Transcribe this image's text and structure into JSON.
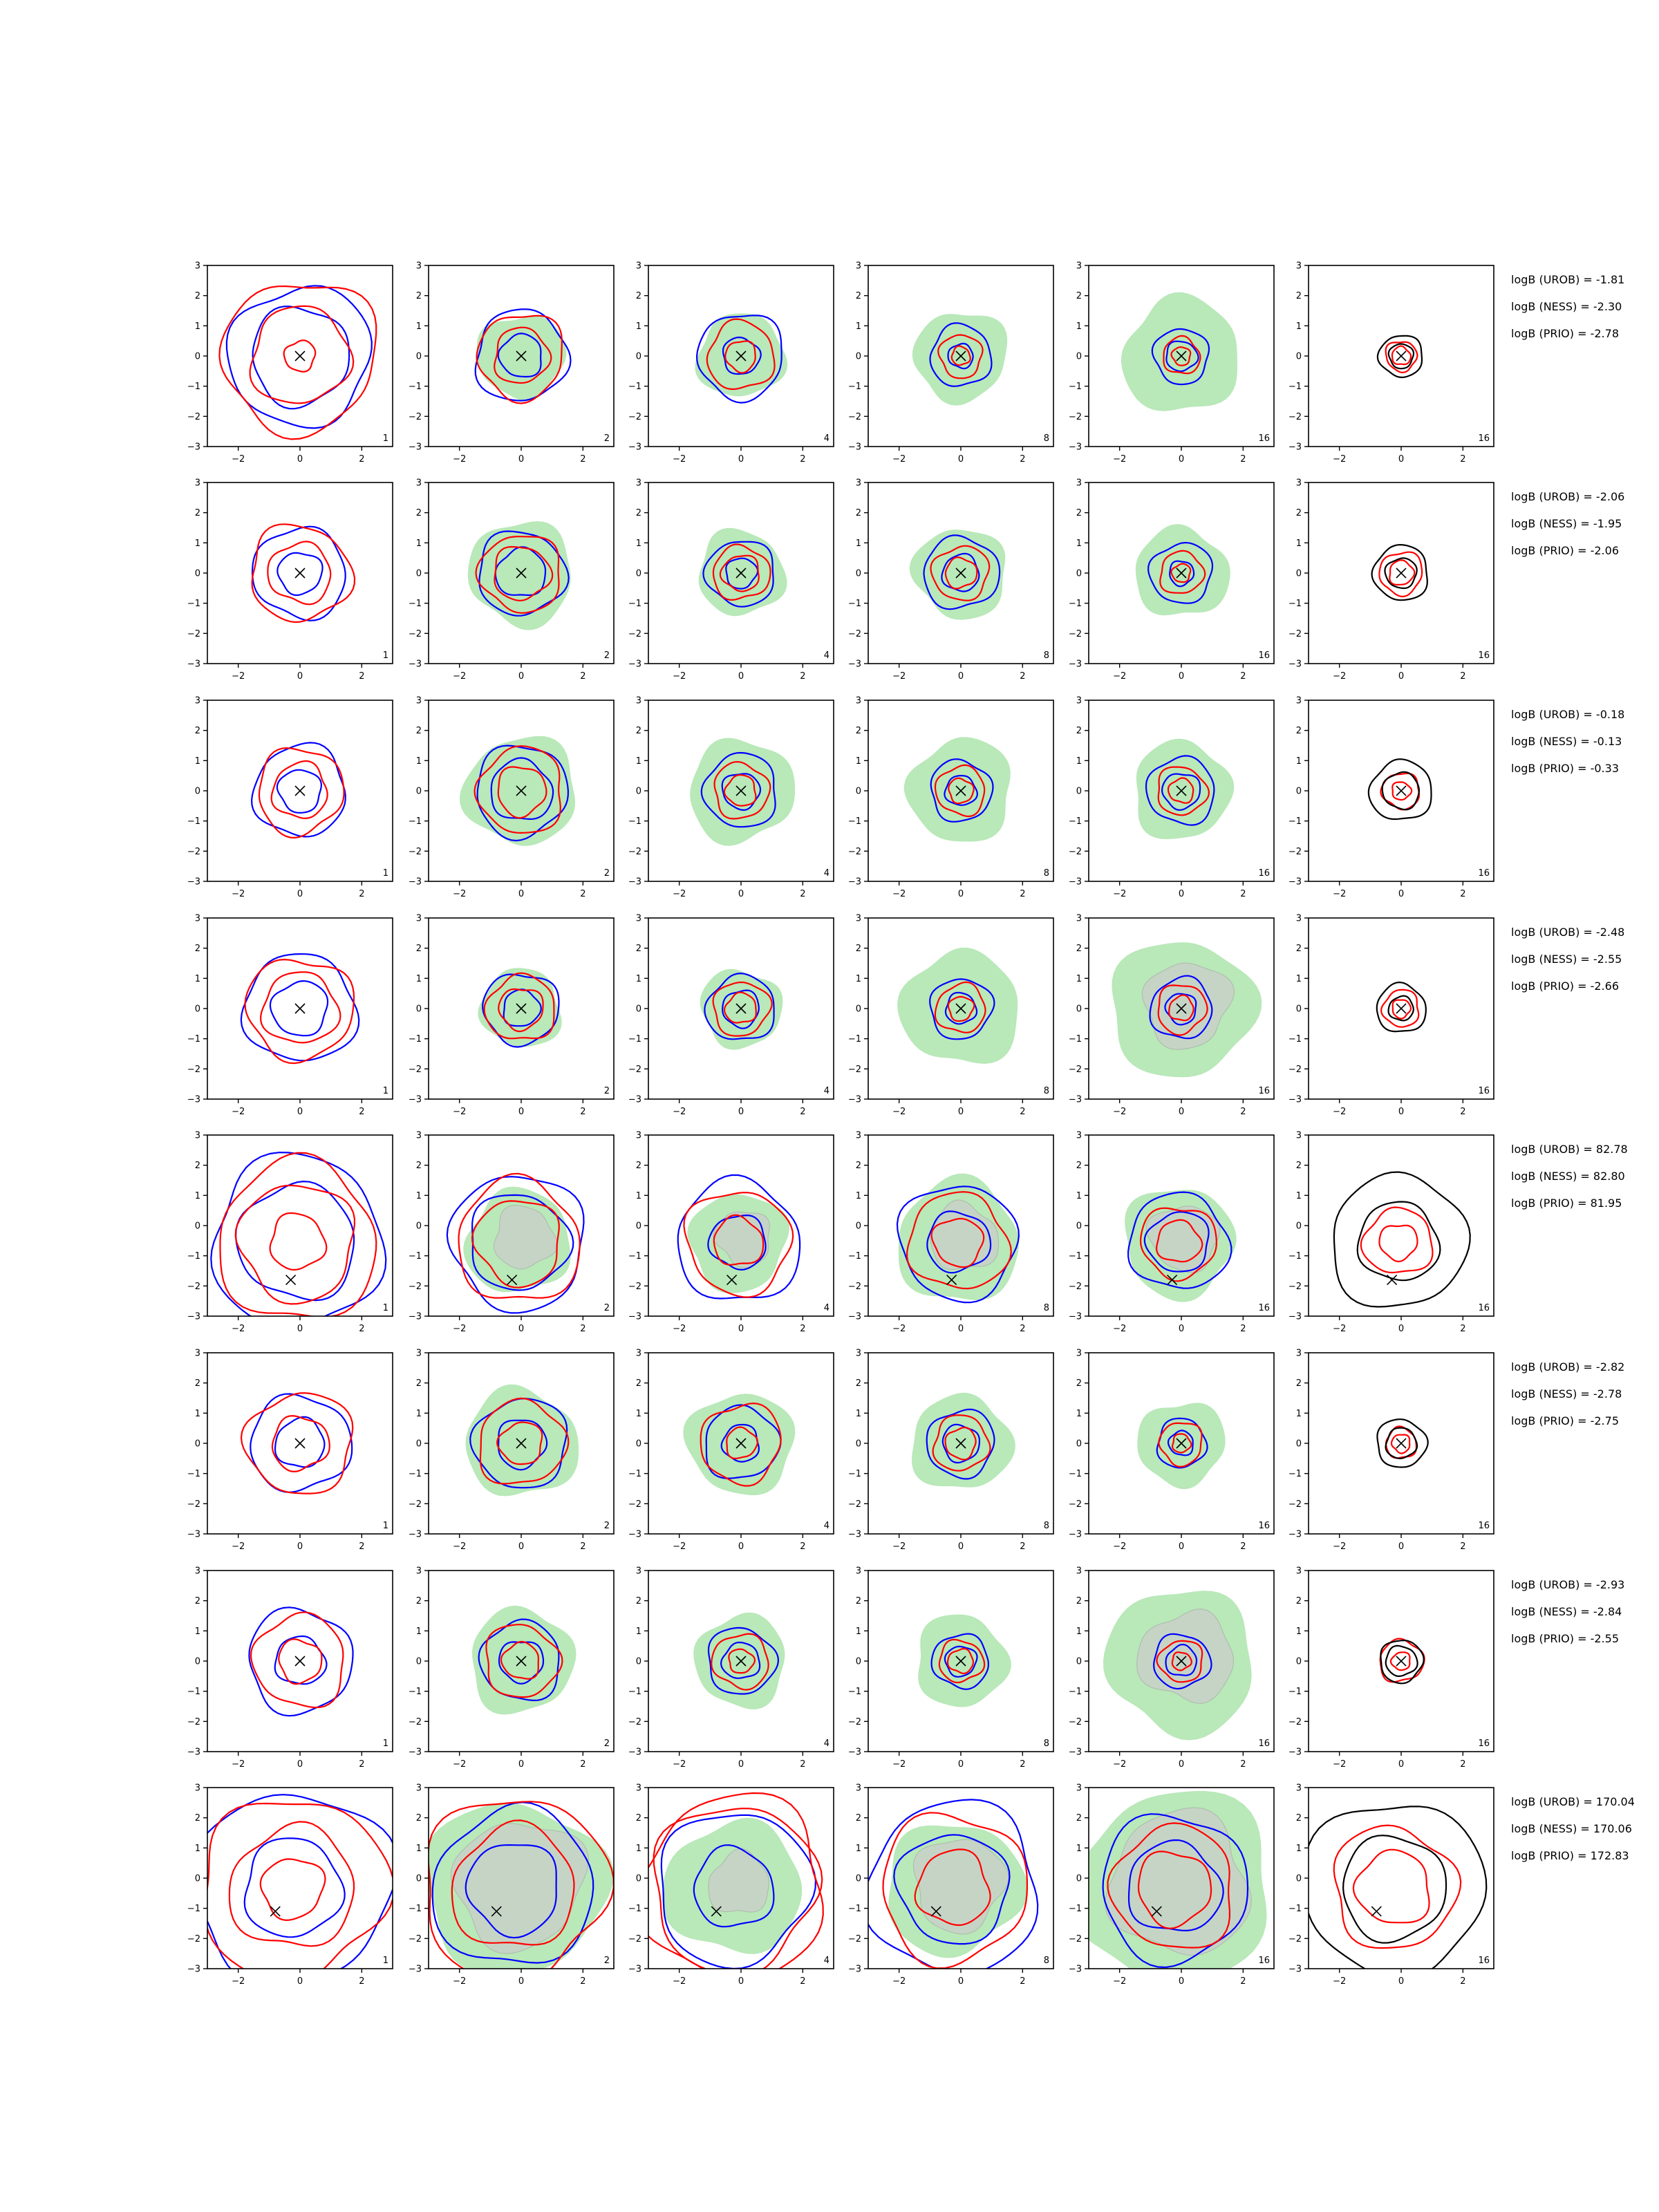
{
  "chart_data": {
    "type": "contour-grid",
    "description_units": "each panel: x in [-3,3], y in [-3,3]",
    "xlim": [
      -3,
      3
    ],
    "ylim": [
      -3,
      3
    ],
    "xticks": [
      "−2",
      "0",
      "2"
    ],
    "yticks": [
      "3",
      "2",
      "1",
      "0",
      "−1",
      "−2",
      "−3"
    ],
    "colors": {
      "blue": "#0000ff",
      "red": "#ff0000",
      "black": "#000000",
      "green_fill": "#b9e8b9",
      "gray_fill": "#c8d2c8"
    },
    "rows": [
      {
        "scores": [
          "logB (UROB) = -1.81",
          "logB (NESS) = -2.30",
          "logB (PRIO) = -2.78"
        ],
        "marker": [
          0,
          0
        ],
        "panels": [
          {
            "label": "1",
            "green": 0,
            "gray": 0,
            "blue": [
              1.6,
              2.3
            ],
            "red": [
              0.5,
              1.6,
              2.5
            ],
            "black": []
          },
          {
            "label": "2",
            "green": 1.4,
            "gray": 0,
            "blue": [
              0.7,
              1.5
            ],
            "red": [
              0.9,
              1.4
            ],
            "black": []
          },
          {
            "label": "4",
            "green": 1.4,
            "gray": 0,
            "blue": [
              0.6,
              1.4
            ],
            "red": [
              0.5,
              1.1
            ],
            "black": []
          },
          {
            "label": "8",
            "green": 1.5,
            "gray": 0,
            "blue": [
              0.4,
              1.0
            ],
            "red": [
              0.3,
              0.7
            ],
            "black": []
          },
          {
            "label": "16",
            "green": 1.9,
            "gray": 0,
            "blue": [
              0.5,
              0.9
            ],
            "red": [
              0.3,
              0.6
            ],
            "black": []
          },
          {
            "label": "16",
            "green": 0,
            "gray": 0,
            "blue": [],
            "red": [
              0.3,
              0.5
            ],
            "black": [
              0.4,
              0.7
            ]
          }
        ]
      },
      {
        "scores": [
          "logB (UROB) = -2.06",
          "logB (NESS) = -1.95",
          "logB (PRIO) = -2.06"
        ],
        "marker": [
          0,
          0
        ],
        "panels": [
          {
            "label": "1",
            "green": 0,
            "gray": 0,
            "blue": [
              0.7,
              1.5
            ],
            "red": [
              1.0,
              1.6
            ],
            "black": []
          },
          {
            "label": "2",
            "green": 1.7,
            "gray": 0,
            "blue": [
              0.8,
              1.4
            ],
            "red": [
              0.9,
              1.3
            ],
            "black": []
          },
          {
            "label": "4",
            "green": 1.4,
            "gray": 0,
            "blue": [
              0.5,
              1.1
            ],
            "red": [
              0.6,
              0.9
            ],
            "black": []
          },
          {
            "label": "8",
            "green": 1.5,
            "gray": 0,
            "blue": [
              0.6,
              1.2
            ],
            "red": [
              0.5,
              0.9
            ],
            "black": []
          },
          {
            "label": "16",
            "green": 1.5,
            "gray": 0,
            "blue": [
              0.4,
              1.0
            ],
            "red": [
              0.3,
              0.7
            ],
            "black": []
          },
          {
            "label": "16",
            "green": 0,
            "gray": 0,
            "blue": [],
            "red": [
              0.4,
              0.7
            ],
            "black": [
              0.5,
              0.9
            ]
          }
        ]
      },
      {
        "scores": [
          "logB (UROB) = -0.18",
          "logB (NESS) = -0.13",
          "logB (PRIO) = -0.33"
        ],
        "marker": [
          0,
          0
        ],
        "panels": [
          {
            "label": "1",
            "green": 0,
            "gray": 0,
            "blue": [
              0.7,
              1.5
            ],
            "red": [
              0.9,
              1.4
            ],
            "black": []
          },
          {
            "label": "2",
            "green": 1.8,
            "gray": 0,
            "blue": [
              1.0,
              1.5
            ],
            "red": [
              0.8,
              1.4
            ],
            "black": []
          },
          {
            "label": "4",
            "green": 1.7,
            "gray": 0,
            "blue": [
              0.6,
              1.2
            ],
            "red": [
              0.5,
              0.9
            ],
            "black": []
          },
          {
            "label": "8",
            "green": 1.7,
            "gray": 0,
            "blue": [
              0.5,
              1.0
            ],
            "red": [
              0.4,
              0.8
            ],
            "black": []
          },
          {
            "label": "16",
            "green": 1.6,
            "gray": 0,
            "blue": [
              0.6,
              1.1
            ],
            "red": [
              0.4,
              0.8
            ],
            "black": []
          },
          {
            "label": "16",
            "green": 0,
            "gray": 0,
            "blue": [],
            "red": [
              0.3,
              0.6
            ],
            "black": [
              0.6,
              1.0
            ]
          }
        ]
      },
      {
        "scores": [
          "logB (UROB) = -2.48",
          "logB (NESS) = -2.55",
          "logB (PRIO) = -2.66"
        ],
        "marker": [
          0,
          0
        ],
        "panels": [
          {
            "label": "1",
            "green": 0,
            "gray": 0,
            "blue": [
              0.9,
              1.8
            ],
            "red": [
              1.2,
              1.7
            ],
            "black": []
          },
          {
            "label": "2",
            "green": 1.3,
            "gray": 0,
            "blue": [
              0.6,
              1.2
            ],
            "red": [
              0.7,
              1.1
            ],
            "black": []
          },
          {
            "label": "4",
            "green": 1.3,
            "gray": 0,
            "blue": [
              0.6,
              1.1
            ],
            "red": [
              0.5,
              0.9
            ],
            "black": []
          },
          {
            "label": "8",
            "green": 1.9,
            "gray": 0,
            "blue": [
              0.5,
              1.0
            ],
            "red": [
              0.4,
              0.8
            ],
            "black": []
          },
          {
            "label": "16",
            "green": 2.3,
            "gray": 1.4,
            "blue": [
              0.5,
              1.0
            ],
            "red": [
              0.4,
              0.8
            ],
            "black": []
          },
          {
            "label": "16",
            "green": 0,
            "gray": 0,
            "blue": [],
            "red": [
              0.3,
              0.6
            ],
            "black": [
              0.4,
              0.8
            ]
          }
        ]
      },
      {
        "scores": [
          "logB (UROB) = 82.78",
          "logB (NESS) = 82.80",
          "logB (PRIO) = 81.95"
        ],
        "marker": [
          -0.3,
          -1.8
        ],
        "panels": [
          {
            "label": "1",
            "green": 0,
            "gray": 0,
            "blue": [
              1.9,
              2.8
            ],
            "red": [
              0.9,
              1.9,
              2.6
            ],
            "black": []
          },
          {
            "label": "2",
            "green": 1.7,
            "gray": 1.0,
            "blue": [
              1.6,
              2.2
            ],
            "red": [
              1.4,
              2.0
            ],
            "black": []
          },
          {
            "label": "4",
            "green": 1.6,
            "gray": 0.9,
            "blue": [
              0.9,
              2.0
            ],
            "red": [
              0.8,
              1.7
            ],
            "black": []
          },
          {
            "label": "8",
            "green": 2.0,
            "gray": 1.1,
            "blue": [
              1.0,
              1.9
            ],
            "red": [
              0.8,
              1.6
            ],
            "black": []
          },
          {
            "label": "16",
            "green": 1.8,
            "gray": 1.1,
            "blue": [
              1.0,
              1.6
            ],
            "red": [
              0.7,
              1.2
            ],
            "black": []
          },
          {
            "label": "16",
            "green": 0,
            "gray": 0,
            "blue": [],
            "red": [
              0.6,
              1.1
            ],
            "black": [
              1.3,
              2.2
            ]
          }
        ]
      },
      {
        "scores": [
          "logB (UROB) = -2.82",
          "logB (NESS) = -2.78",
          "logB (PRIO) = -2.75"
        ],
        "marker": [
          0,
          0
        ],
        "panels": [
          {
            "label": "1",
            "green": 0,
            "gray": 0,
            "blue": [
              0.8,
              1.6
            ],
            "red": [
              0.9,
              1.7
            ],
            "black": []
          },
          {
            "label": "2",
            "green": 1.8,
            "gray": 0,
            "blue": [
              0.8,
              1.5
            ],
            "red": [
              0.7,
              1.4
            ],
            "black": []
          },
          {
            "label": "4",
            "green": 1.7,
            "gray": 0,
            "blue": [
              0.6,
              1.2
            ],
            "red": [
              0.5,
              1.3
            ],
            "black": []
          },
          {
            "label": "8",
            "green": 1.6,
            "gray": 0,
            "blue": [
              0.6,
              1.1
            ],
            "red": [
              0.5,
              0.9
            ],
            "black": []
          },
          {
            "label": "16",
            "green": 1.4,
            "gray": 0,
            "blue": [
              0.4,
              0.8
            ],
            "red": [
              0.3,
              0.7
            ],
            "black": []
          },
          {
            "label": "16",
            "green": 0,
            "gray": 0,
            "blue": [],
            "red": [
              0.3,
              0.5
            ],
            "black": [
              0.5,
              0.8
            ]
          }
        ]
      },
      {
        "scores": [
          "logB (UROB) = -2.93",
          "logB (NESS) = -2.84",
          "logB (PRIO) = -2.55"
        ],
        "marker": [
          0,
          0
        ],
        "panels": [
          {
            "label": "1",
            "green": 0,
            "gray": 0,
            "blue": [
              0.8,
              1.7
            ],
            "red": [
              0.7,
              1.5
            ],
            "black": []
          },
          {
            "label": "2",
            "green": 1.7,
            "gray": 0,
            "blue": [
              0.7,
              1.3
            ],
            "red": [
              0.6,
              1.2
            ],
            "black": []
          },
          {
            "label": "4",
            "green": 1.5,
            "gray": 0,
            "blue": [
              0.6,
              1.1
            ],
            "red": [
              0.4,
              0.9
            ],
            "black": []
          },
          {
            "label": "8",
            "green": 1.5,
            "gray": 0,
            "blue": [
              0.5,
              0.9
            ],
            "red": [
              0.4,
              0.7
            ],
            "black": []
          },
          {
            "label": "16",
            "green": 2.4,
            "gray": 1.5,
            "blue": [
              0.5,
              0.9
            ],
            "red": [
              0.3,
              0.7
            ],
            "black": []
          },
          {
            "label": "16",
            "green": 0,
            "gray": 0,
            "blue": [],
            "red": [
              0.3,
              0.7
            ],
            "black": [
              0.5,
              0.7
            ]
          }
        ]
      },
      {
        "scores": [
          "logB (UROB) = 170.04",
          "logB (NESS) = 170.06",
          "logB (PRIO) = 172.83"
        ],
        "marker": [
          -0.8,
          -1.1
        ],
        "panels": [
          {
            "label": "1",
            "green": 0,
            "gray": 0,
            "blue": [
              1.6,
              3.2
            ],
            "red": [
              1.0,
              2.0,
              3.0
            ],
            "black": []
          },
          {
            "label": "2",
            "green": 2.9,
            "gray": 2.1,
            "blue": [
              1.5,
              2.6
            ],
            "red": [
              2.0,
              3.0
            ],
            "black": []
          },
          {
            "label": "4",
            "green": 2.2,
            "gray": 1.0,
            "blue": [
              1.3,
              2.5
            ],
            "red": [
              2.7,
              3.0
            ],
            "black": []
          },
          {
            "label": "8",
            "green": 2.2,
            "gray": 1.5,
            "blue": [
              1.8,
              2.8
            ],
            "red": [
              1.2,
              2.4
            ],
            "black": []
          },
          {
            "label": "16",
            "green": 3.2,
            "gray": 2.3,
            "blue": [
              1.5,
              2.4
            ],
            "red": [
              1.2,
              2.0
            ],
            "black": []
          },
          {
            "label": "16",
            "green": 0,
            "gray": 0,
            "blue": [],
            "red": [
              1.2,
              2.0
            ],
            "black": [
              1.7,
              2.9
            ]
          }
        ]
      }
    ]
  }
}
